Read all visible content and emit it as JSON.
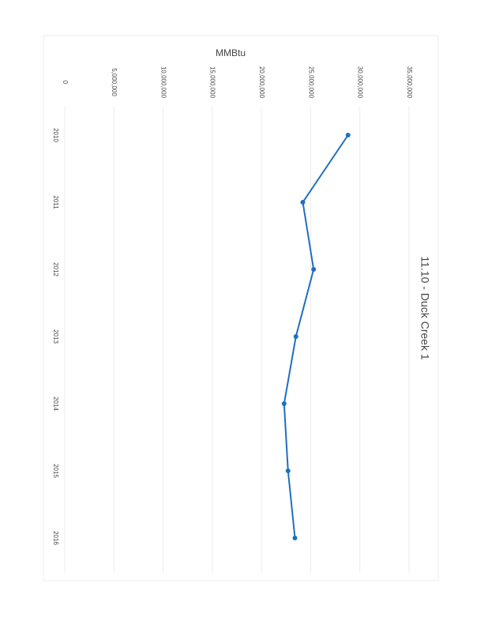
{
  "chart_data": {
    "type": "line",
    "title": "11.10 - Duck Creek 1",
    "y_label": "MMBtu",
    "categories": [
      "2010",
      "2011",
      "2012",
      "2013",
      "2014",
      "2015",
      "2016"
    ],
    "series": [
      {
        "name": "MMBtu",
        "color": "#1f6fbf",
        "values": [
          28800000,
          24200000,
          25300000,
          23500000,
          22300000,
          22700000,
          23400000
        ]
      }
    ],
    "ylim": [
      0,
      35000000
    ],
    "yticks": [
      0,
      {
        "value": 5000000,
        "label": "5,000,000"
      },
      {
        "value": 10000000,
        "label": "10,000,000"
      },
      {
        "value": 15000000,
        "label": "15,000,000"
      },
      {
        "value": 20000000,
        "label": "20,000,000"
      },
      {
        "value": 25000000,
        "label": "25,000,000"
      },
      {
        "value": 30000000,
        "label": "30,000,000"
      },
      {
        "value": 35000000,
        "label": "35,000,000"
      }
    ],
    "grid": true
  }
}
